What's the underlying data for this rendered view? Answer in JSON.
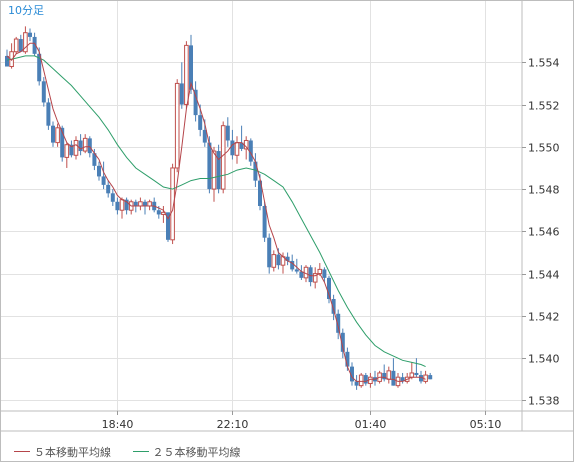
{
  "chart_data": {
    "type": "candlestick",
    "timeframe_label": "10分足",
    "x_tick_labels": [
      "18:40",
      "22:10",
      "01:40",
      "05:10"
    ],
    "y_tick_labels": [
      "1.538",
      "1.540",
      "1.542",
      "1.544",
      "1.546",
      "1.548",
      "1.550",
      "1.552",
      "1.554"
    ],
    "ylim": [
      1.5375,
      1.5569
    ],
    "grid": true,
    "legend_position": "bottom-left",
    "series": [
      {
        "name": "５本移動平均線",
        "color": "#b5454a"
      },
      {
        "name": "２５本移動平均線",
        "color": "#2e9e6a"
      }
    ],
    "colors": {
      "up_candle": "#c0504d",
      "down_candle": "#4a7fb6",
      "grid": "#e2e2e2",
      "frame": "#bdbdbd",
      "axis_text": "#333333",
      "label_blue": "#2a8bd6"
    },
    "candles": [
      [
        1.5543,
        1.5546,
        1.5538,
        1.5538
      ],
      [
        1.5538,
        1.5549,
        1.5537,
        1.5545
      ],
      [
        1.5545,
        1.5552,
        1.5544,
        1.5551
      ],
      [
        1.5551,
        1.5553,
        1.5545,
        1.5545
      ],
      [
        1.5545,
        1.5557,
        1.5544,
        1.5554
      ],
      [
        1.5554,
        1.5556,
        1.555,
        1.5552
      ],
      [
        1.5552,
        1.5554,
        1.5543,
        1.5544
      ],
      [
        1.5544,
        1.5547,
        1.5529,
        1.5531
      ],
      [
        1.5531,
        1.5533,
        1.5519,
        1.5521
      ],
      [
        1.5521,
        1.5523,
        1.5508,
        1.551
      ],
      [
        1.551,
        1.5512,
        1.55,
        1.5502
      ],
      [
        1.5502,
        1.5511,
        1.55,
        1.5509
      ],
      [
        1.5509,
        1.551,
        1.5493,
        1.5495
      ],
      [
        1.5495,
        1.5502,
        1.549,
        1.5501
      ],
      [
        1.5501,
        1.5503,
        1.5495,
        1.5496
      ],
      [
        1.5496,
        1.5505,
        1.5494,
        1.5503
      ],
      [
        1.5503,
        1.5506,
        1.5496,
        1.5498
      ],
      [
        1.5498,
        1.5506,
        1.5497,
        1.5504
      ],
      [
        1.5504,
        1.5505,
        1.5495,
        1.5497
      ],
      [
        1.5497,
        1.5499,
        1.5489,
        1.5491
      ],
      [
        1.5491,
        1.5493,
        1.5484,
        1.5486
      ],
      [
        1.5486,
        1.5493,
        1.548,
        1.5482
      ],
      [
        1.5482,
        1.5484,
        1.5476,
        1.5478
      ],
      [
        1.5478,
        1.548,
        1.5472,
        1.5474
      ],
      [
        1.5474,
        1.5476,
        1.5468,
        1.547
      ],
      [
        1.547,
        1.5476,
        1.5466,
        1.5475
      ],
      [
        1.5475,
        1.5476,
        1.5468,
        1.547
      ],
      [
        1.547,
        1.5475,
        1.5468,
        1.5474
      ],
      [
        1.5474,
        1.5475,
        1.5469,
        1.5472
      ],
      [
        1.5472,
        1.5476,
        1.547,
        1.5474
      ],
      [
        1.5474,
        1.5475,
        1.5468,
        1.5472
      ],
      [
        1.5472,
        1.5475,
        1.547,
        1.5474
      ],
      [
        1.5474,
        1.5476,
        1.5469,
        1.547
      ],
      [
        1.547,
        1.5472,
        1.5466,
        1.5468
      ],
      [
        1.5468,
        1.5472,
        1.5464,
        1.5469
      ],
      [
        1.5469,
        1.5469,
        1.5455,
        1.5456
      ],
      [
        1.5456,
        1.5492,
        1.5454,
        1.549
      ],
      [
        1.549,
        1.5532,
        1.5488,
        1.553
      ],
      [
        1.553,
        1.554,
        1.5518,
        1.552
      ],
      [
        1.552,
        1.555,
        1.5518,
        1.5548
      ],
      [
        1.5548,
        1.5553,
        1.5525,
        1.5527
      ],
      [
        1.5527,
        1.5531,
        1.5512,
        1.5515
      ],
      [
        1.5515,
        1.552,
        1.5505,
        1.5508
      ],
      [
        1.5508,
        1.5513,
        1.55,
        1.5502
      ],
      [
        1.5502,
        1.5505,
        1.5478,
        1.548
      ],
      [
        1.548,
        1.55,
        1.5474,
        1.5498
      ],
      [
        1.5498,
        1.5501,
        1.5478,
        1.548
      ],
      [
        1.548,
        1.5512,
        1.5478,
        1.551
      ],
      [
        1.551,
        1.5514,
        1.55,
        1.5503
      ],
      [
        1.5503,
        1.5508,
        1.5494,
        1.5496
      ],
      [
        1.5496,
        1.5505,
        1.5492,
        1.5502
      ],
      [
        1.5502,
        1.551,
        1.5498,
        1.5499
      ],
      [
        1.5499,
        1.5505,
        1.5494,
        1.5503
      ],
      [
        1.5503,
        1.5504,
        1.5491,
        1.5493
      ],
      [
        1.5493,
        1.5497,
        1.5481,
        1.5484
      ],
      [
        1.5484,
        1.5487,
        1.547,
        1.5472
      ],
      [
        1.5472,
        1.5474,
        1.5455,
        1.5457
      ],
      [
        1.5457,
        1.5459,
        1.544,
        1.5443
      ],
      [
        1.5443,
        1.5451,
        1.5441,
        1.5449
      ],
      [
        1.5449,
        1.5452,
        1.5442,
        1.5444
      ],
      [
        1.5444,
        1.545,
        1.544,
        1.5448
      ],
      [
        1.5448,
        1.545,
        1.5444,
        1.5446
      ],
      [
        1.5446,
        1.5449,
        1.5441,
        1.5442
      ],
      [
        1.5442,
        1.5447,
        1.544,
        1.5441
      ],
      [
        1.5441,
        1.5444,
        1.5437,
        1.5438
      ],
      [
        1.5438,
        1.5444,
        1.5436,
        1.5443
      ],
      [
        1.5443,
        1.5444,
        1.5434,
        1.5436
      ],
      [
        1.5436,
        1.5443,
        1.5433,
        1.544
      ],
      [
        1.544,
        1.5445,
        1.5439,
        1.5442
      ],
      [
        1.5442,
        1.5443,
        1.5436,
        1.5438
      ],
      [
        1.5438,
        1.5439,
        1.5426,
        1.5428
      ],
      [
        1.5428,
        1.543,
        1.5418,
        1.5421
      ],
      [
        1.5421,
        1.5423,
        1.5409,
        1.5412
      ],
      [
        1.5412,
        1.5414,
        1.54,
        1.5403
      ],
      [
        1.5403,
        1.5405,
        1.5394,
        1.5396
      ],
      [
        1.5396,
        1.5398,
        1.5387,
        1.5389
      ],
      [
        1.5389,
        1.5392,
        1.5385,
        1.5387
      ],
      [
        1.5387,
        1.5393,
        1.5386,
        1.5392
      ],
      [
        1.5392,
        1.5393,
        1.5387,
        1.5388
      ],
      [
        1.5388,
        1.5393,
        1.5386,
        1.5391
      ],
      [
        1.5391,
        1.5394,
        1.5387,
        1.5389
      ],
      [
        1.5389,
        1.5394,
        1.5388,
        1.5393
      ],
      [
        1.5393,
        1.5397,
        1.5389,
        1.539
      ],
      [
        1.539,
        1.5396,
        1.5388,
        1.5394
      ],
      [
        1.5394,
        1.54,
        1.5387,
        1.5387
      ],
      [
        1.5387,
        1.5393,
        1.5386,
        1.5391
      ],
      [
        1.5391,
        1.5393,
        1.5388,
        1.5389
      ],
      [
        1.5389,
        1.5393,
        1.5388,
        1.5391
      ],
      [
        1.5391,
        1.5398,
        1.539,
        1.5393
      ],
      [
        1.5393,
        1.54,
        1.5391,
        1.5392
      ],
      [
        1.5392,
        1.5394,
        1.5388,
        1.5389
      ],
      [
        1.5389,
        1.5394,
        1.5388,
        1.5392
      ],
      [
        1.5392,
        1.5393,
        1.539,
        1.539
      ]
    ],
    "ma5": [
      [
        0,
        1.5543
      ],
      [
        1,
        1.5541
      ],
      [
        2,
        1.5544
      ],
      [
        3,
        1.5545
      ],
      [
        4,
        1.5547
      ],
      [
        5,
        1.5549
      ],
      [
        6,
        1.5549
      ],
      [
        7,
        1.5545
      ],
      [
        8,
        1.5536
      ],
      [
        9,
        1.5527
      ],
      [
        10,
        1.5518
      ],
      [
        11,
        1.5512
      ],
      [
        12,
        1.5507
      ],
      [
        13,
        1.5502
      ],
      [
        14,
        1.55
      ],
      [
        15,
        1.5501
      ],
      [
        16,
        1.5499
      ],
      [
        17,
        1.55
      ],
      [
        18,
        1.55
      ],
      [
        19,
        1.5497
      ],
      [
        20,
        1.5494
      ],
      [
        21,
        1.5488
      ],
      [
        22,
        1.5484
      ],
      [
        23,
        1.5481
      ],
      [
        24,
        1.5477
      ],
      [
        25,
        1.5475
      ],
      [
        26,
        1.5474
      ],
      [
        27,
        1.5472
      ],
      [
        28,
        1.5472
      ],
      [
        29,
        1.5472
      ],
      [
        30,
        1.5472
      ],
      [
        31,
        1.5472
      ],
      [
        32,
        1.5472
      ],
      [
        33,
        1.5471
      ],
      [
        34,
        1.547
      ],
      [
        35,
        1.5466
      ],
      [
        36,
        1.547
      ],
      [
        37,
        1.5483
      ],
      [
        38,
        1.55
      ],
      [
        39,
        1.5518
      ],
      [
        40,
        1.553
      ],
      [
        41,
        1.5524
      ],
      [
        42,
        1.5518
      ],
      [
        43,
        1.5511
      ],
      [
        44,
        1.5501
      ],
      [
        45,
        1.5497
      ],
      [
        46,
        1.5494
      ],
      [
        47,
        1.5496
      ],
      [
        48,
        1.5498
      ],
      [
        49,
        1.5501
      ],
      [
        50,
        1.5502
      ],
      [
        51,
        1.5502
      ],
      [
        52,
        1.55
      ],
      [
        53,
        1.5497
      ],
      [
        54,
        1.5493
      ],
      [
        55,
        1.5485
      ],
      [
        56,
        1.5474
      ],
      [
        57,
        1.5463
      ],
      [
        58,
        1.5457
      ],
      [
        59,
        1.545
      ],
      [
        60,
        1.5448
      ],
      [
        61,
        1.5446
      ],
      [
        62,
        1.5445
      ],
      [
        63,
        1.5443
      ],
      [
        64,
        1.5441
      ],
      [
        65,
        1.544
      ],
      [
        66,
        1.5439
      ],
      [
        67,
        1.5439
      ],
      [
        68,
        1.544
      ],
      [
        69,
        1.5436
      ],
      [
        70,
        1.543
      ],
      [
        71,
        1.5423
      ],
      [
        72,
        1.5415
      ],
      [
        73,
        1.5405
      ],
      [
        74,
        1.5396
      ],
      [
        75,
        1.5391
      ],
      [
        76,
        1.5389
      ],
      [
        77,
        1.5389
      ],
      [
        78,
        1.5389
      ],
      [
        79,
        1.539
      ],
      [
        80,
        1.539
      ],
      [
        81,
        1.5391
      ],
      [
        82,
        1.5391
      ],
      [
        83,
        1.539
      ],
      [
        84,
        1.539
      ],
      [
        85,
        1.5389
      ],
      [
        86,
        1.5389
      ],
      [
        87,
        1.539
      ],
      [
        88,
        1.5391
      ],
      [
        89,
        1.5391
      ],
      [
        90,
        1.5391
      ],
      [
        91,
        1.539
      ]
    ],
    "ma25": [
      [
        0,
        1.5541
      ],
      [
        2,
        1.5542
      ],
      [
        4,
        1.5543
      ],
      [
        6,
        1.5543
      ],
      [
        8,
        1.5541
      ],
      [
        10,
        1.5537
      ],
      [
        12,
        1.5533
      ],
      [
        14,
        1.5529
      ],
      [
        16,
        1.5524
      ],
      [
        18,
        1.5519
      ],
      [
        20,
        1.5514
      ],
      [
        22,
        1.5508
      ],
      [
        24,
        1.5501
      ],
      [
        26,
        1.5495
      ],
      [
        28,
        1.549
      ],
      [
        30,
        1.5487
      ],
      [
        32,
        1.5484
      ],
      [
        34,
        1.5481
      ],
      [
        36,
        1.548
      ],
      [
        38,
        1.5482
      ],
      [
        40,
        1.5484
      ],
      [
        42,
        1.5485
      ],
      [
        44,
        1.5485
      ],
      [
        46,
        1.5486
      ],
      [
        48,
        1.5487
      ],
      [
        50,
        1.5489
      ],
      [
        52,
        1.549
      ],
      [
        54,
        1.5489
      ],
      [
        56,
        1.5487
      ],
      [
        58,
        1.5484
      ],
      [
        60,
        1.5481
      ],
      [
        62,
        1.5474
      ],
      [
        64,
        1.5466
      ],
      [
        66,
        1.5458
      ],
      [
        68,
        1.545
      ],
      [
        70,
        1.5441
      ],
      [
        72,
        1.5432
      ],
      [
        74,
        1.5424
      ],
      [
        76,
        1.5417
      ],
      [
        78,
        1.5411
      ],
      [
        80,
        1.5406
      ],
      [
        82,
        1.5403
      ],
      [
        84,
        1.5401
      ],
      [
        86,
        1.5399
      ],
      [
        88,
        1.5398
      ],
      [
        90,
        1.5397
      ],
      [
        91,
        1.5396
      ]
    ]
  }
}
